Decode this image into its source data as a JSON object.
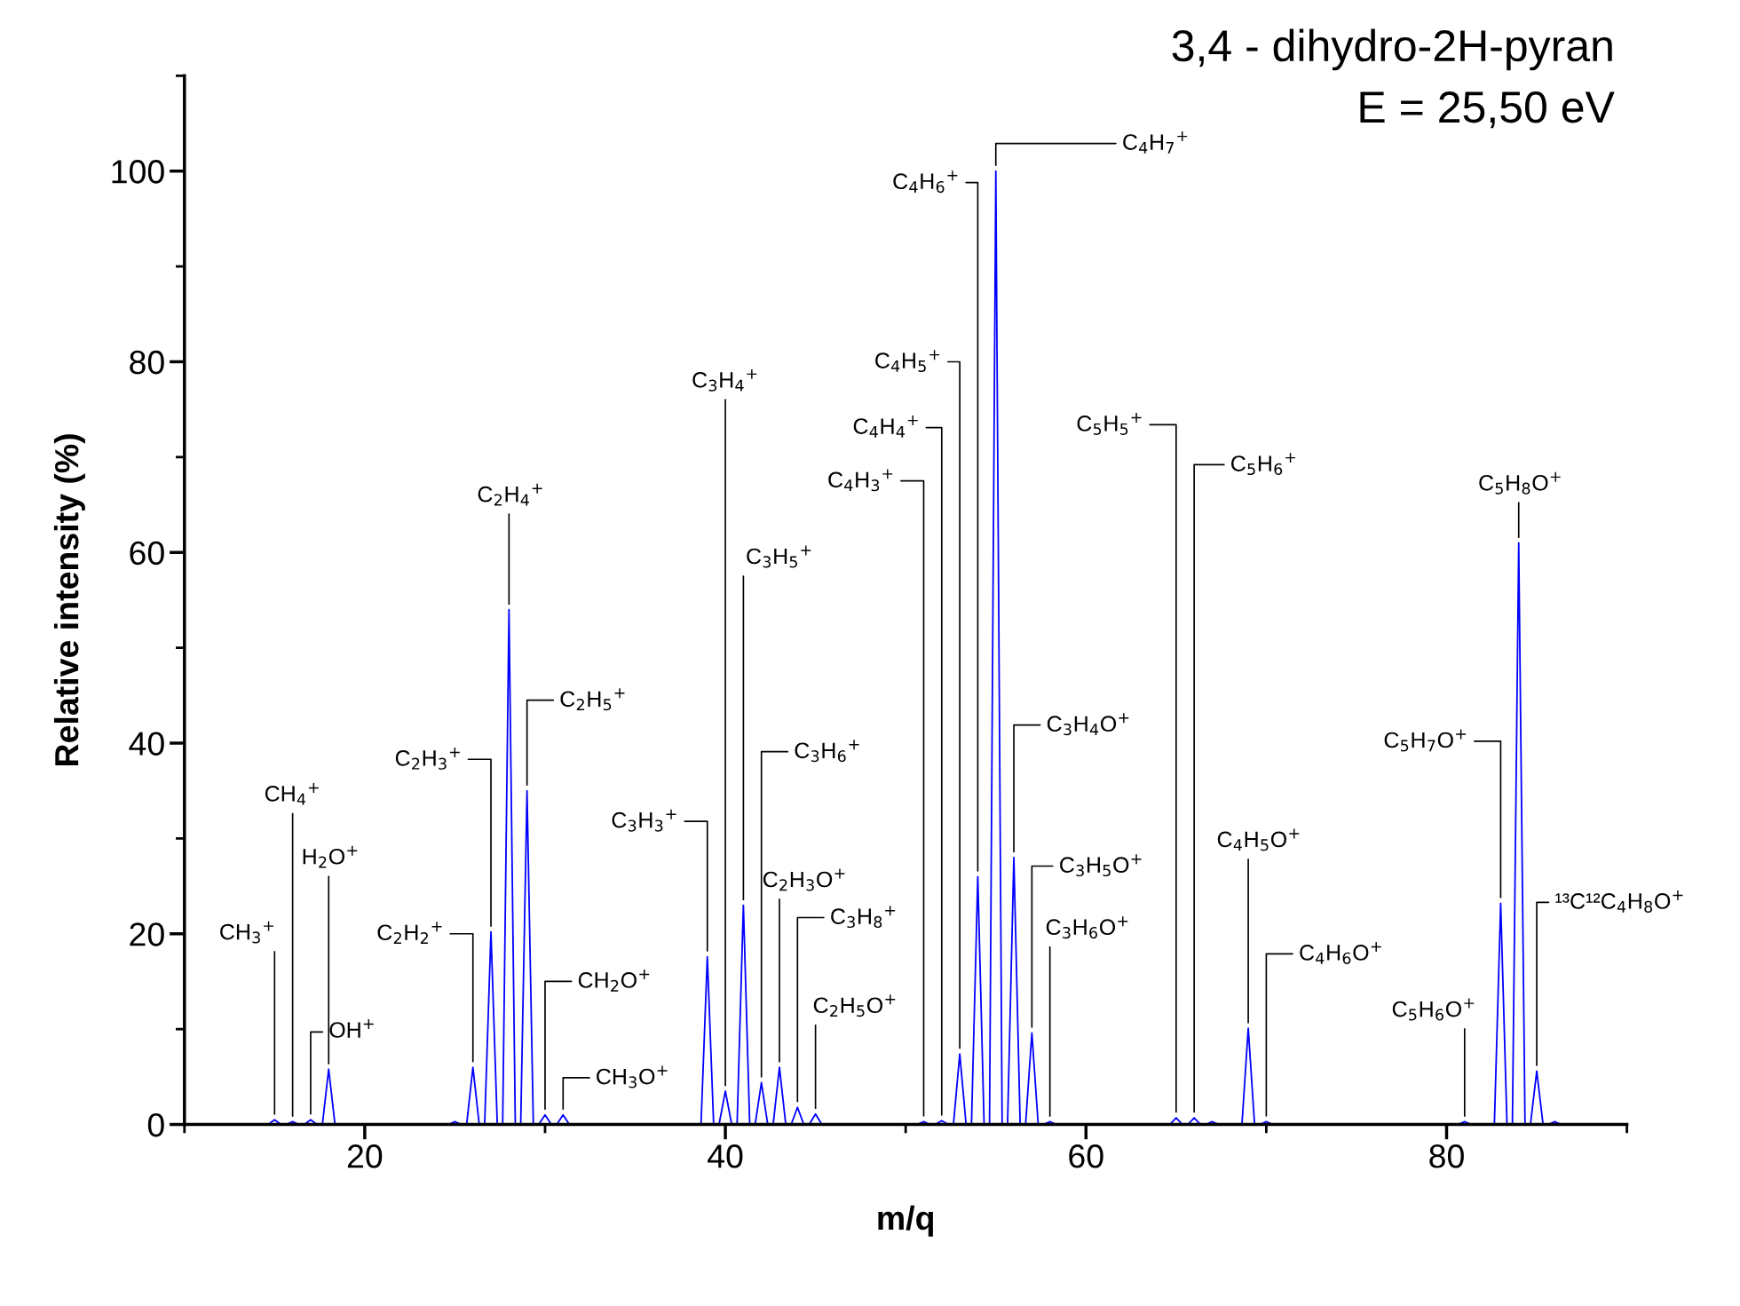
{
  "chart_data": {
    "type": "line",
    "title": "3,4 - dihydro-2H-pyran",
    "subtitle": "E = 25,50 eV",
    "xlabel": "m/q",
    "ylabel": "Relative intensity (%)",
    "xlim": [
      10,
      90
    ],
    "ylim": [
      0,
      110
    ],
    "xticks": [
      20,
      40,
      60,
      80
    ],
    "yticks": [
      0,
      20,
      40,
      60,
      80,
      100
    ],
    "grid": false,
    "marker": "none",
    "line_style": "solid",
    "series": [
      {
        "color": "#0000ff",
        "x": [
          10,
          14.65,
          15,
          15.35,
          15.65,
          16,
          16.35,
          16.65,
          17,
          17.35,
          17.65,
          18,
          18.35,
          24.65,
          25,
          25.35,
          25.65,
          26,
          26.35,
          26.65,
          27,
          27.35,
          27.65,
          28,
          28.35,
          28.65,
          29,
          29.35,
          29.65,
          30,
          30.35,
          30.65,
          31,
          31.35,
          38.65,
          39,
          39.35,
          39.65,
          40,
          40.35,
          40.65,
          41,
          41.35,
          41.65,
          42,
          42.35,
          42.65,
          43,
          43.35,
          43.65,
          44,
          44.35,
          44.65,
          45,
          45.35,
          50.65,
          51,
          51.35,
          51.65,
          52,
          52.35,
          52.65,
          53,
          53.35,
          53.65,
          54,
          54.35,
          54.65,
          55,
          55.35,
          55.65,
          56,
          56.35,
          56.65,
          57,
          57.35,
          57.65,
          58,
          58.35,
          64.65,
          65,
          65.35,
          65.65,
          66,
          66.35,
          66.65,
          67,
          67.35,
          68.65,
          69,
          69.35,
          69.65,
          70,
          70.35,
          80.65,
          81,
          81.35,
          82.65,
          83,
          83.35,
          83.65,
          84,
          84.35,
          84.65,
          85,
          85.35,
          85.65,
          86,
          86.35,
          90
        ],
        "values": [
          0,
          0,
          0.5,
          0,
          0,
          0.3,
          0,
          0,
          0.5,
          0,
          0,
          5.8,
          0,
          0,
          0.3,
          0,
          0,
          6,
          0,
          0,
          20.2,
          0,
          0,
          54,
          0,
          0,
          35,
          0,
          0,
          1,
          0,
          0,
          1,
          0,
          0,
          17.6,
          0,
          0,
          3.5,
          0,
          0,
          23,
          0,
          0,
          4.4,
          0,
          0,
          6,
          0,
          0,
          1.8,
          0,
          0,
          1.1,
          0,
          0,
          0.3,
          0,
          0,
          0.4,
          0,
          0,
          7.4,
          0,
          0,
          26,
          0,
          0,
          100,
          0,
          0,
          28,
          0,
          0,
          9.6,
          0,
          0,
          0.3,
          0,
          0,
          0.7,
          0,
          0,
          0.7,
          0,
          0,
          0.3,
          0,
          0,
          10.1,
          0,
          0,
          0.3,
          0,
          0,
          0.3,
          0,
          0,
          23.2,
          0,
          0,
          61,
          0,
          0,
          5.6,
          0,
          0,
          0.3,
          0,
          0
        ]
      }
    ],
    "annotations": [
      {
        "text": "CH$_{3}$$^{+}$",
        "x": 15,
        "y": 0.5
      },
      {
        "text": "CH$_{4}$$^{+}$",
        "x": 16,
        "y": 0.3
      },
      {
        "text": "H$_{2}$O$^{+}$",
        "x": 18,
        "y": 5.8
      },
      {
        "text": "OH$^{+}$",
        "x": 17,
        "y": 0.5
      },
      {
        "text": "C$_{2}$H$_{2}$$^{+}$",
        "x": 26,
        "y": 6
      },
      {
        "text": "C$_{2}$H$_{3}$$^{+}$",
        "x": 27,
        "y": 20.2
      },
      {
        "text": "C$_{2}$H$_{4}$$^{+}$",
        "x": 28,
        "y": 54
      },
      {
        "text": "C$_{2}$H$_{5}$$^{+}$",
        "x": 29,
        "y": 35
      },
      {
        "text": "CH$_{2}$O$^{+}$",
        "x": 30,
        "y": 1
      },
      {
        "text": "CH$_{3}$O$^{+}$",
        "x": 31,
        "y": 1
      },
      {
        "text": "C$_{3}$H$_{3}$$^{+}$",
        "x": 39,
        "y": 17.6
      },
      {
        "text": "C$_{3}$H$_{4}$$^{+}$",
        "x": 40,
        "y": 3.5
      },
      {
        "text": "C$_{3}$H$_{5}$$^{+}$",
        "x": 41,
        "y": 23
      },
      {
        "text": "C$_{3}$H$_{6}$$^{+}$",
        "x": 42,
        "y": 4.4
      },
      {
        "text": "C$_{2}$H$_{3}$O$^{+}$",
        "x": 43,
        "y": 6
      },
      {
        "text": "C$_{3}$H$_{8}$$^{+}$",
        "x": 44,
        "y": 1.8
      },
      {
        "text": "C$_{2}$H$_{5}$O$^{+}$",
        "x": 45,
        "y": 1.1
      },
      {
        "text": "C$_{4}$H$_{3}$$^{+}$",
        "x": 51,
        "y": 0.3
      },
      {
        "text": "C$_{4}$H$_{4}$$^{+}$",
        "x": 52,
        "y": 0.4
      },
      {
        "text": "C$_{4}$H$_{5}$$^{+}$",
        "x": 53,
        "y": 7.4
      },
      {
        "text": "C$_{4}$H$_{6}$$^{+}$",
        "x": 54,
        "y": 26
      },
      {
        "text": "C$_{4}$H$_{7}$$^{+}$",
        "x": 55,
        "y": 100
      },
      {
        "text": "C$_{3}$H$_{4}$O$^{+}$",
        "x": 56,
        "y": 28
      },
      {
        "text": "C$_{3}$H$_{5}$O$^{+}$",
        "x": 57,
        "y": 9.6
      },
      {
        "text": "C$_{3}$H$_{6}$O$^{+}$",
        "x": 58,
        "y": 0.3
      },
      {
        "text": "C$_{5}$H$_{5}$$^{+}$",
        "x": 65,
        "y": 0.7
      },
      {
        "text": "C$_{5}$H$_{6}$$^{+}$",
        "x": 66,
        "y": 0.7
      },
      {
        "text": "C$_{4}$H$_{5}$O$^{+}$",
        "x": 69,
        "y": 10.1
      },
      {
        "text": "C$_{4}$H$_{6}$O$^{+}$",
        "x": 70,
        "y": 0.3
      },
      {
        "text": "C$_{5}$H$_{6}$O$^{+}$",
        "x": 81,
        "y": 0.3
      },
      {
        "text": "C$_{5}$H$_{7}$O$^{+}$",
        "x": 83,
        "y": 23.2
      },
      {
        "text": "C$_{5}$H$_{8}$O$^{+}$",
        "x": 84,
        "y": 61
      },
      {
        "text": "¹³C¹²C$_{4}$H$_{8}$O$^{+}$",
        "x": 85,
        "y": 5.6
      }
    ]
  }
}
